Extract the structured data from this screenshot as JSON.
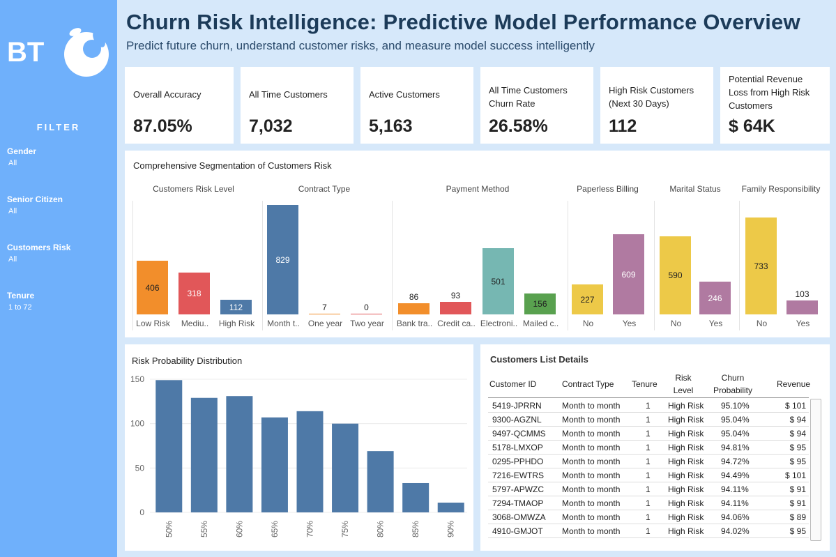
{
  "sidebar": {
    "logo_text": "BT",
    "filter_title": "FILTER",
    "filters": [
      {
        "label": "Gender",
        "value": "All"
      },
      {
        "label": "Senior Citizen",
        "value": "All"
      },
      {
        "label": "Customers Risk",
        "value": "All"
      },
      {
        "label": "Tenure",
        "value": "1 to 72"
      }
    ]
  },
  "header": {
    "title": "Churn Risk Intelligence: Predictive Model Performance Overview",
    "subtitle": "Predict future churn, understand customer risks, and measure model success intelligently"
  },
  "kpis": [
    {
      "label": "Overall Accuracy",
      "value": "87.05%"
    },
    {
      "label": "All Time Customers",
      "value": "7,032"
    },
    {
      "label": "Active Customers",
      "value": "5,163"
    },
    {
      "label": "All Time Customers Churn Rate",
      "value": "26.58%"
    },
    {
      "label": "High Risk Customers (Next 30 Days)",
      "value": "112"
    },
    {
      "label": "Potential Revenue Loss from High Risk Customers",
      "value": "$ 64K"
    }
  ],
  "segmentation": {
    "title": "Comprehensive Segmentation of Customers Risk",
    "groups": [
      {
        "title": "Customers Risk Level",
        "bars": [
          {
            "label": "Low Risk",
            "value": 406,
            "color": "#f28e2b"
          },
          {
            "label": "Mediu..",
            "value": 318,
            "color": "#e15759"
          },
          {
            "label": "High Risk",
            "value": 112,
            "color": "#4e79a7"
          }
        ]
      },
      {
        "title": "Contract Type",
        "bars": [
          {
            "label": "Month t..",
            "value": 829,
            "color": "#4e79a7"
          },
          {
            "label": "One year",
            "value": 7,
            "color": "#f28e2b"
          },
          {
            "label": "Two year",
            "value": 0,
            "color": "#e15759"
          }
        ]
      },
      {
        "title": "Payment Method",
        "bars": [
          {
            "label": "Bank tra..",
            "value": 86,
            "color": "#f28e2b"
          },
          {
            "label": "Credit ca..",
            "value": 93,
            "color": "#e15759"
          },
          {
            "label": "Electroni..",
            "value": 501,
            "color": "#76b7b2"
          },
          {
            "label": "Mailed c..",
            "value": 156,
            "color": "#59a14f"
          }
        ]
      },
      {
        "title": "Paperless Billing",
        "bars": [
          {
            "label": "No",
            "value": 227,
            "color": "#edc948"
          },
          {
            "label": "Yes",
            "value": 609,
            "color": "#b07aa1"
          }
        ]
      },
      {
        "title": "Marital Status",
        "bars": [
          {
            "label": "No",
            "value": 590,
            "color": "#edc948"
          },
          {
            "label": "Yes",
            "value": 246,
            "color": "#b07aa1"
          }
        ]
      },
      {
        "title": "Family Responsibility",
        "bars": [
          {
            "label": "No",
            "value": 733,
            "color": "#edc948"
          },
          {
            "label": "Yes",
            "value": 103,
            "color": "#b07aa1"
          }
        ]
      }
    ]
  },
  "distribution": {
    "title": "Risk Probability Distribution"
  },
  "chart_data": {
    "type": "bar",
    "title": "Risk Probability Distribution",
    "categories": [
      "50%",
      "55%",
      "60%",
      "65%",
      "70%",
      "75%",
      "80%",
      "85%",
      "90%"
    ],
    "values": [
      149,
      129,
      131,
      107,
      114,
      100,
      69,
      33,
      11
    ],
    "ylim": [
      0,
      150
    ],
    "yticks": [
      0,
      50,
      100,
      150
    ],
    "color": "#4e79a7",
    "grid": true
  },
  "customers": {
    "title": "Customers List Details",
    "columns": [
      "Customer ID",
      "Contract Type",
      "Tenure",
      "Risk Level",
      "Churn Probability",
      "Revenue"
    ],
    "rows": [
      [
        "5419-JPRRN",
        "Month to month",
        "1",
        "High Risk",
        "95.10%",
        "$ 101"
      ],
      [
        "9300-AGZNL",
        "Month to month",
        "1",
        "High Risk",
        "95.04%",
        "$ 94"
      ],
      [
        "9497-QCMMS",
        "Month to month",
        "1",
        "High Risk",
        "95.04%",
        "$ 94"
      ],
      [
        "5178-LMXOP",
        "Month to month",
        "1",
        "High Risk",
        "94.81%",
        "$ 95"
      ],
      [
        "0295-PPHDO",
        "Month to month",
        "1",
        "High Risk",
        "94.72%",
        "$ 95"
      ],
      [
        "7216-EWTRS",
        "Month to month",
        "1",
        "High Risk",
        "94.49%",
        "$ 101"
      ],
      [
        "5797-APWZC",
        "Month to month",
        "1",
        "High Risk",
        "94.11%",
        "$ 91"
      ],
      [
        "7294-TMAOP",
        "Month to month",
        "1",
        "High Risk",
        "94.11%",
        "$ 91"
      ],
      [
        "3068-OMWZA",
        "Month to month",
        "1",
        "High Risk",
        "94.06%",
        "$ 89"
      ],
      [
        "4910-GMJOT",
        "Month to month",
        "1",
        "High Risk",
        "94.02%",
        "$ 95"
      ]
    ]
  }
}
